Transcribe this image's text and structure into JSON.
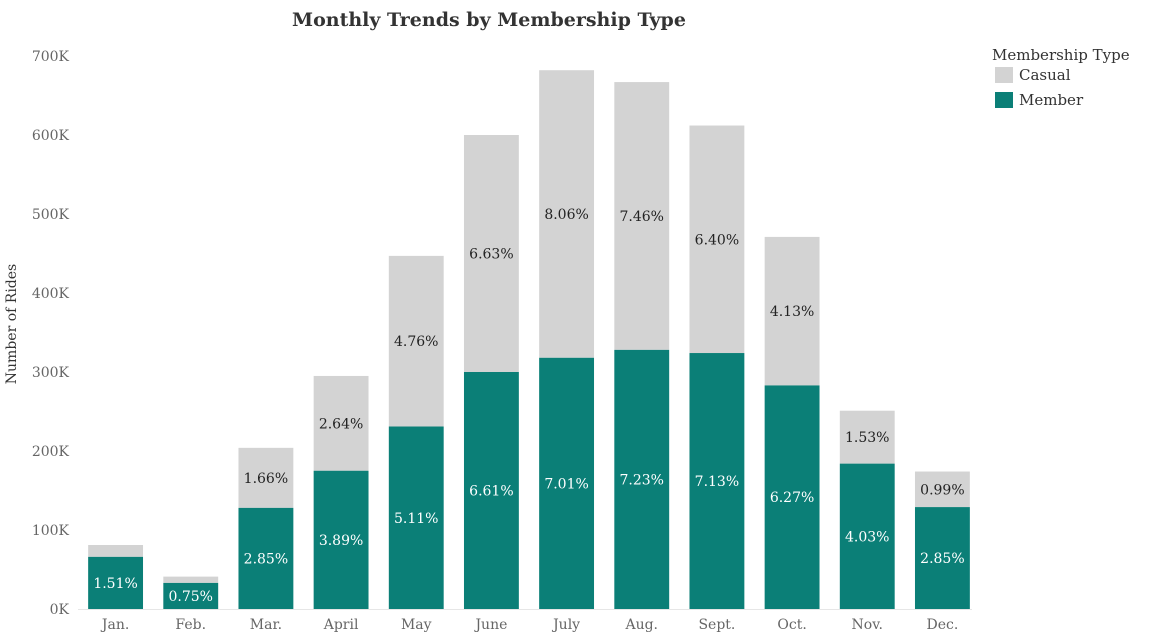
{
  "chart_data": {
    "type": "bar",
    "stacked": true,
    "title": "Monthly Trends by Membership Type",
    "xlabel": "",
    "ylabel": "Number of Rides",
    "ylim": [
      0,
      700000
    ],
    "yticks": [
      {
        "value": 0,
        "label": "0K"
      },
      {
        "value": 100000,
        "label": "100K"
      },
      {
        "value": 200000,
        "label": "200K"
      },
      {
        "value": 300000,
        "label": "300K"
      },
      {
        "value": 400000,
        "label": "400K"
      },
      {
        "value": 500000,
        "label": "500K"
      },
      {
        "value": 600000,
        "label": "600K"
      },
      {
        "value": 700000,
        "label": "700K"
      }
    ],
    "categories": [
      "Jan.",
      "Feb.",
      "Mar.",
      "April",
      "May",
      "June",
      "July",
      "Aug.",
      "Sept.",
      "Oct.",
      "Nov.",
      "Dec."
    ],
    "legend": {
      "title": "Membership Type",
      "position": "top-right"
    },
    "grid": false,
    "series": [
      {
        "name": "Member",
        "color": "#0b7f77",
        "values": [
          66000,
          33000,
          128000,
          175000,
          231000,
          300000,
          318000,
          328000,
          324000,
          283000,
          184000,
          129000
        ],
        "labels": [
          "1.51%",
          "0.75%",
          "2.85%",
          "3.89%",
          "5.11%",
          "6.61%",
          "7.01%",
          "7.23%",
          "7.13%",
          "6.27%",
          "4.03%",
          "2.85%"
        ]
      },
      {
        "name": "Casual",
        "color": "#d3d3d3",
        "values": [
          15000,
          8000,
          76000,
          120000,
          216000,
          300000,
          364000,
          339000,
          288000,
          188000,
          67000,
          45000
        ],
        "labels": [
          "",
          "",
          "1.66%",
          "2.64%",
          "4.76%",
          "6.63%",
          "8.06%",
          "7.46%",
          "6.40%",
          "4.13%",
          "1.53%",
          "0.99%"
        ]
      }
    ]
  }
}
